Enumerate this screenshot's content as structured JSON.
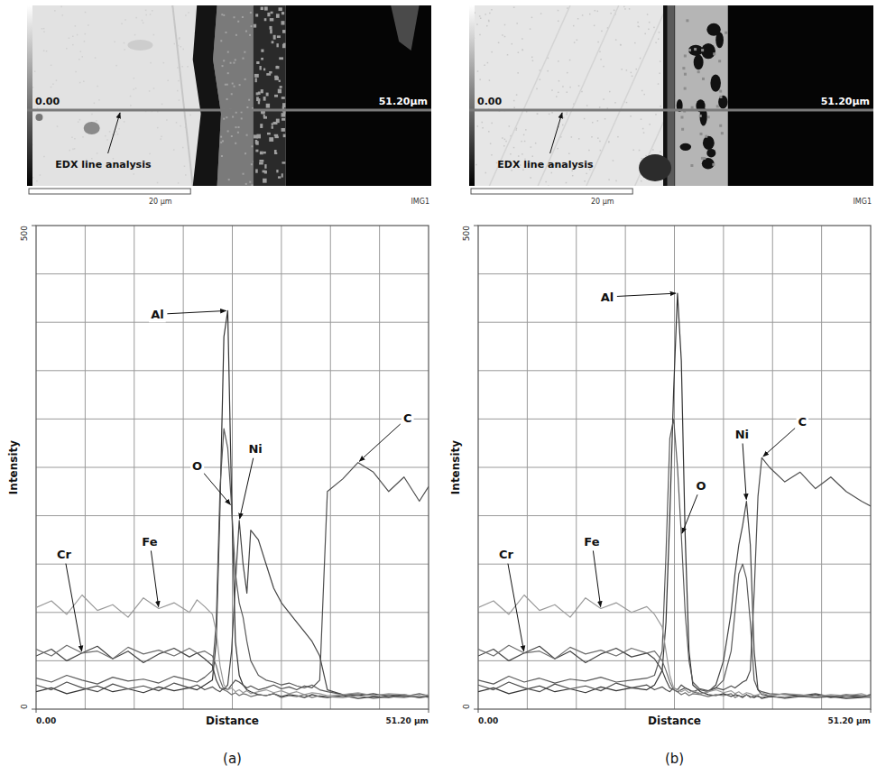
{
  "chart_data": [
    {
      "type": "line",
      "title": "(a)",
      "xlabel": "Distance",
      "ylabel": "Intensity",
      "xlim": [
        0,
        51.2
      ],
      "ylim": [
        0,
        500
      ],
      "xticks": [
        {
          "value": 0,
          "label": "0.00"
        },
        {
          "value": 51.2,
          "label": "51.20 µm"
        }
      ],
      "yticks": [
        0,
        500
      ],
      "grid": true,
      "image": {
        "start_label": "0.00",
        "end_label": "51.20µm",
        "annotation": "EDX line analysis",
        "scale_bar": "20 µm",
        "tag": "IMG1"
      },
      "x": [
        0,
        2,
        4,
        6,
        8,
        10,
        12,
        14,
        16,
        18,
        20,
        21,
        22,
        23,
        23.5,
        24,
        24.5,
        25,
        25.5,
        26,
        26.5,
        27,
        27.5,
        28,
        29,
        30,
        31,
        32,
        33,
        34,
        35,
        36,
        37,
        38,
        40,
        42,
        44,
        46,
        48,
        50,
        51.2
      ],
      "series": [
        {
          "name": "Al",
          "color": "#333333",
          "values": [
            18,
            22,
            16,
            20,
            24,
            18,
            21,
            17,
            23,
            19,
            22,
            20,
            25,
            30,
            70,
            210,
            385,
            412,
            220,
            70,
            35,
            25,
            20,
            18,
            15,
            14,
            16,
            13,
            15,
            14,
            12,
            15,
            13,
            12,
            14,
            11,
            13,
            12,
            14,
            12,
            13
          ]
        },
        {
          "name": "O",
          "color": "#5a5a5a",
          "values": [
            32,
            28,
            35,
            30,
            26,
            33,
            29,
            31,
            27,
            34,
            30,
            28,
            33,
            40,
            90,
            230,
            290,
            270,
            210,
            140,
            110,
            95,
            70,
            50,
            35,
            30,
            28,
            25,
            27,
            24,
            22,
            25,
            20,
            18,
            15,
            16,
            14,
            15,
            13,
            16,
            14
          ]
        },
        {
          "name": "Ni",
          "color": "#444444",
          "values": [
            55,
            62,
            50,
            58,
            65,
            52,
            60,
            48,
            57,
            63,
            54,
            58,
            52,
            45,
            30,
            22,
            20,
            25,
            60,
            130,
            195,
            150,
            120,
            185,
            175,
            150,
            125,
            110,
            100,
            90,
            80,
            70,
            55,
            20,
            15,
            14,
            16,
            13,
            15,
            12,
            14
          ]
        },
        {
          "name": "C",
          "color": "#4f4f4f",
          "values": [
            25,
            20,
            28,
            22,
            18,
            26,
            21,
            24,
            19,
            27,
            22,
            25,
            20,
            23,
            20,
            18,
            22,
            20,
            25,
            30,
            28,
            25,
            22,
            24,
            20,
            22,
            25,
            21,
            23,
            20,
            24,
            22,
            30,
            225,
            238,
            255,
            245,
            225,
            240,
            215,
            230
          ]
        },
        {
          "name": "Cr",
          "color": "#6e6e6e",
          "values": [
            62,
            55,
            66,
            58,
            60,
            52,
            64,
            57,
            61,
            55,
            63,
            58,
            60,
            55,
            45,
            30,
            20,
            18,
            15,
            17,
            14,
            16,
            15,
            13,
            15,
            14,
            16,
            12,
            14,
            13,
            15,
            12,
            14,
            13,
            12,
            14,
            11,
            13,
            12,
            14,
            12
          ]
        },
        {
          "name": "Fe",
          "color": "#9a9a9a",
          "values": [
            105,
            112,
            98,
            118,
            102,
            108,
            95,
            115,
            104,
            110,
            100,
            113,
            106,
            98,
            80,
            45,
            25,
            20,
            22,
            18,
            20,
            17,
            19,
            16,
            18,
            20,
            17,
            19,
            16,
            18,
            15,
            17,
            16,
            14,
            15,
            17,
            14,
            16,
            15,
            13,
            15
          ]
        }
      ]
    },
    {
      "type": "line",
      "title": "(b)",
      "xlabel": "Distance",
      "ylabel": "Intensity",
      "xlim": [
        0,
        51.2
      ],
      "ylim": [
        0,
        500
      ],
      "xticks": [
        {
          "value": 0,
          "label": "0.00"
        },
        {
          "value": 51.2,
          "label": "51.20 µm"
        }
      ],
      "yticks": [
        0,
        500
      ],
      "grid": true,
      "image": {
        "start_label": "0.00",
        "end_label": "51.20µm",
        "annotation": "EDX line analysis",
        "scale_bar": "20 µm",
        "tag": "IMG1"
      },
      "x": [
        0,
        2,
        4,
        6,
        8,
        10,
        12,
        14,
        16,
        18,
        20,
        22,
        23,
        24,
        24.5,
        25,
        25.5,
        26,
        26.5,
        27,
        27.5,
        28,
        29,
        30,
        31,
        32,
        33,
        33.5,
        34,
        34.5,
        35,
        35.5,
        36,
        36.5,
        37,
        38,
        40,
        42,
        44,
        46,
        48,
        50,
        51.2
      ],
      "series": [
        {
          "name": "Al",
          "color": "#333333",
          "values": [
            18,
            22,
            16,
            20,
            24,
            18,
            21,
            17,
            23,
            19,
            22,
            20,
            25,
            40,
            90,
            200,
            330,
            430,
            360,
            180,
            60,
            25,
            18,
            15,
            14,
            16,
            13,
            15,
            14,
            12,
            15,
            13,
            12,
            14,
            11,
            13,
            12,
            14,
            12,
            13,
            11,
            12,
            13
          ]
        },
        {
          "name": "O",
          "color": "#5a5a5a",
          "values": [
            30,
            26,
            34,
            28,
            32,
            27,
            31,
            29,
            33,
            28,
            30,
            32,
            35,
            60,
            160,
            280,
            300,
            250,
            180,
            100,
            50,
            28,
            20,
            18,
            22,
            30,
            60,
            100,
            140,
            150,
            135,
            90,
            30,
            20,
            18,
            16,
            15,
            14,
            16,
            13,
            15,
            14,
            13
          ]
        },
        {
          "name": "Ni",
          "color": "#444444",
          "values": [
            55,
            62,
            50,
            58,
            65,
            52,
            60,
            48,
            57,
            63,
            54,
            58,
            52,
            40,
            30,
            22,
            20,
            18,
            20,
            22,
            20,
            18,
            16,
            18,
            25,
            50,
            100,
            140,
            170,
            190,
            215,
            170,
            60,
            20,
            15,
            14,
            16,
            13,
            15,
            12,
            14,
            13,
            15
          ]
        },
        {
          "name": "C",
          "color": "#4f4f4f",
          "values": [
            25,
            20,
            28,
            22,
            18,
            26,
            21,
            24,
            19,
            27,
            22,
            25,
            20,
            23,
            20,
            18,
            22,
            20,
            25,
            22,
            20,
            18,
            21,
            19,
            22,
            20,
            24,
            22,
            25,
            28,
            30,
            40,
            120,
            220,
            260,
            250,
            235,
            245,
            228,
            240,
            225,
            215,
            210
          ]
        },
        {
          "name": "Cr",
          "color": "#6e6e6e",
          "values": [
            62,
            55,
            66,
            58,
            60,
            52,
            64,
            57,
            61,
            55,
            63,
            58,
            60,
            50,
            40,
            28,
            20,
            18,
            15,
            17,
            14,
            16,
            15,
            13,
            15,
            14,
            16,
            12,
            14,
            13,
            15,
            12,
            14,
            13,
            12,
            14,
            11,
            13,
            12,
            14,
            12,
            13,
            12
          ]
        },
        {
          "name": "Fe",
          "color": "#9a9a9a",
          "values": [
            105,
            112,
            98,
            118,
            102,
            108,
            95,
            115,
            104,
            110,
            100,
            106,
            98,
            85,
            60,
            35,
            22,
            20,
            18,
            20,
            17,
            19,
            16,
            18,
            20,
            17,
            19,
            16,
            18,
            15,
            17,
            16,
            14,
            15,
            17,
            14,
            16,
            15,
            13,
            15,
            14,
            16,
            13
          ]
        }
      ]
    }
  ]
}
